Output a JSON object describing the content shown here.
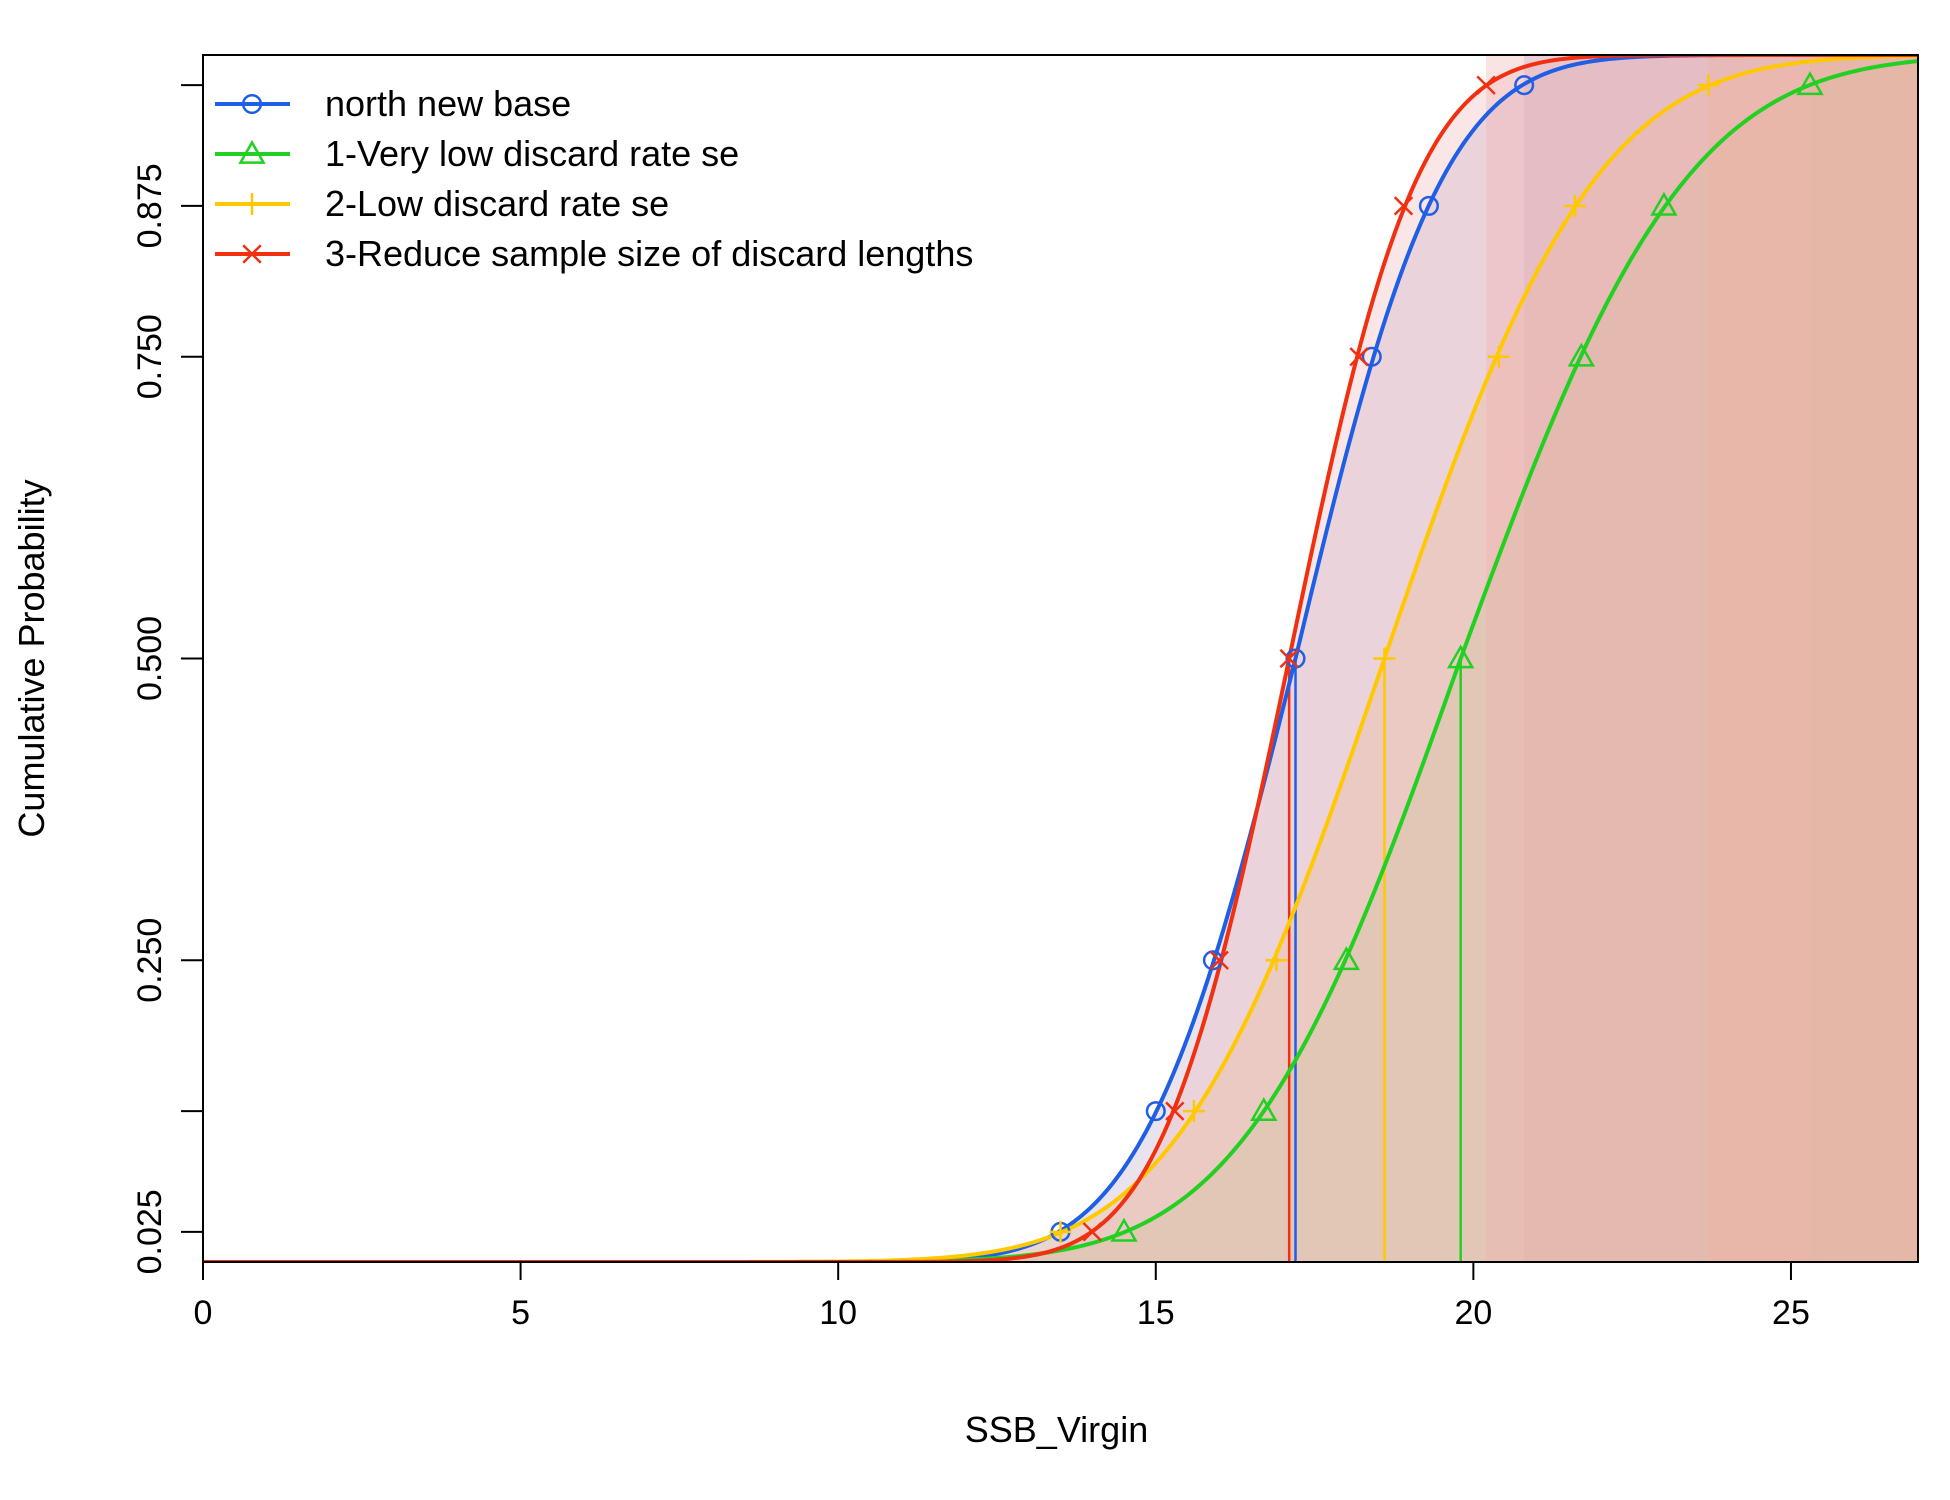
{
  "chart_data": {
    "type": "line",
    "title": "",
    "xlabel": "SSB_Virgin",
    "ylabel": "Cumulative Probability",
    "xlim": [
      0,
      27
    ],
    "ylim": [
      0,
      1
    ],
    "x_ticks": [
      {
        "value": 0,
        "label": "0"
      },
      {
        "value": 5,
        "label": "5"
      },
      {
        "value": 10,
        "label": "10"
      },
      {
        "value": 15,
        "label": "15"
      },
      {
        "value": 20,
        "label": "20"
      },
      {
        "value": 25,
        "label": "25"
      }
    ],
    "y_ticks": [
      {
        "value": 0.025,
        "label": "0.025",
        "labeled": true
      },
      {
        "value": 0.125,
        "label": "",
        "labeled": false
      },
      {
        "value": 0.25,
        "label": "0.250",
        "labeled": true
      },
      {
        "value": 0.5,
        "label": "0.500",
        "labeled": true
      },
      {
        "value": 0.75,
        "label": "0.750",
        "labeled": true
      },
      {
        "value": 0.875,
        "label": "0.875",
        "labeled": true
      },
      {
        "value": 0.975,
        "label": "",
        "labeled": false
      }
    ],
    "grid": false,
    "legend_position": "top-left",
    "marker_probabilities": [
      0.025,
      0.125,
      0.25,
      0.5,
      0.75,
      0.875,
      0.975
    ],
    "series": [
      {
        "name": "north new base",
        "color": "#1f5fe6",
        "marker": "circle",
        "quantiles": [
          13.5,
          15.0,
          15.9,
          17.2,
          18.4,
          19.3,
          20.8
        ],
        "median": 17.2,
        "fill": "#b8a8c8"
      },
      {
        "name": "1-Very low discard rate se",
        "color": "#22d022",
        "marker": "triangle",
        "quantiles": [
          14.5,
          16.7,
          18.0,
          19.8,
          21.7,
          23.0,
          25.3
        ],
        "median": 19.8,
        "fill": "#a8c890"
      },
      {
        "name": "2-Low discard rate se",
        "color": "#ffc800",
        "marker": "plus",
        "quantiles": [
          13.5,
          15.6,
          16.9,
          18.6,
          20.4,
          21.6,
          23.7
        ],
        "median": 18.6,
        "fill": "#eebb88"
      },
      {
        "name": "3-Reduce sample size of discard lengths",
        "color": "#f03010",
        "marker": "cross",
        "quantiles": [
          14.0,
          15.3,
          16.0,
          17.1,
          18.2,
          18.9,
          20.2
        ],
        "median": 17.1,
        "fill": "#f0b0b0"
      }
    ]
  }
}
